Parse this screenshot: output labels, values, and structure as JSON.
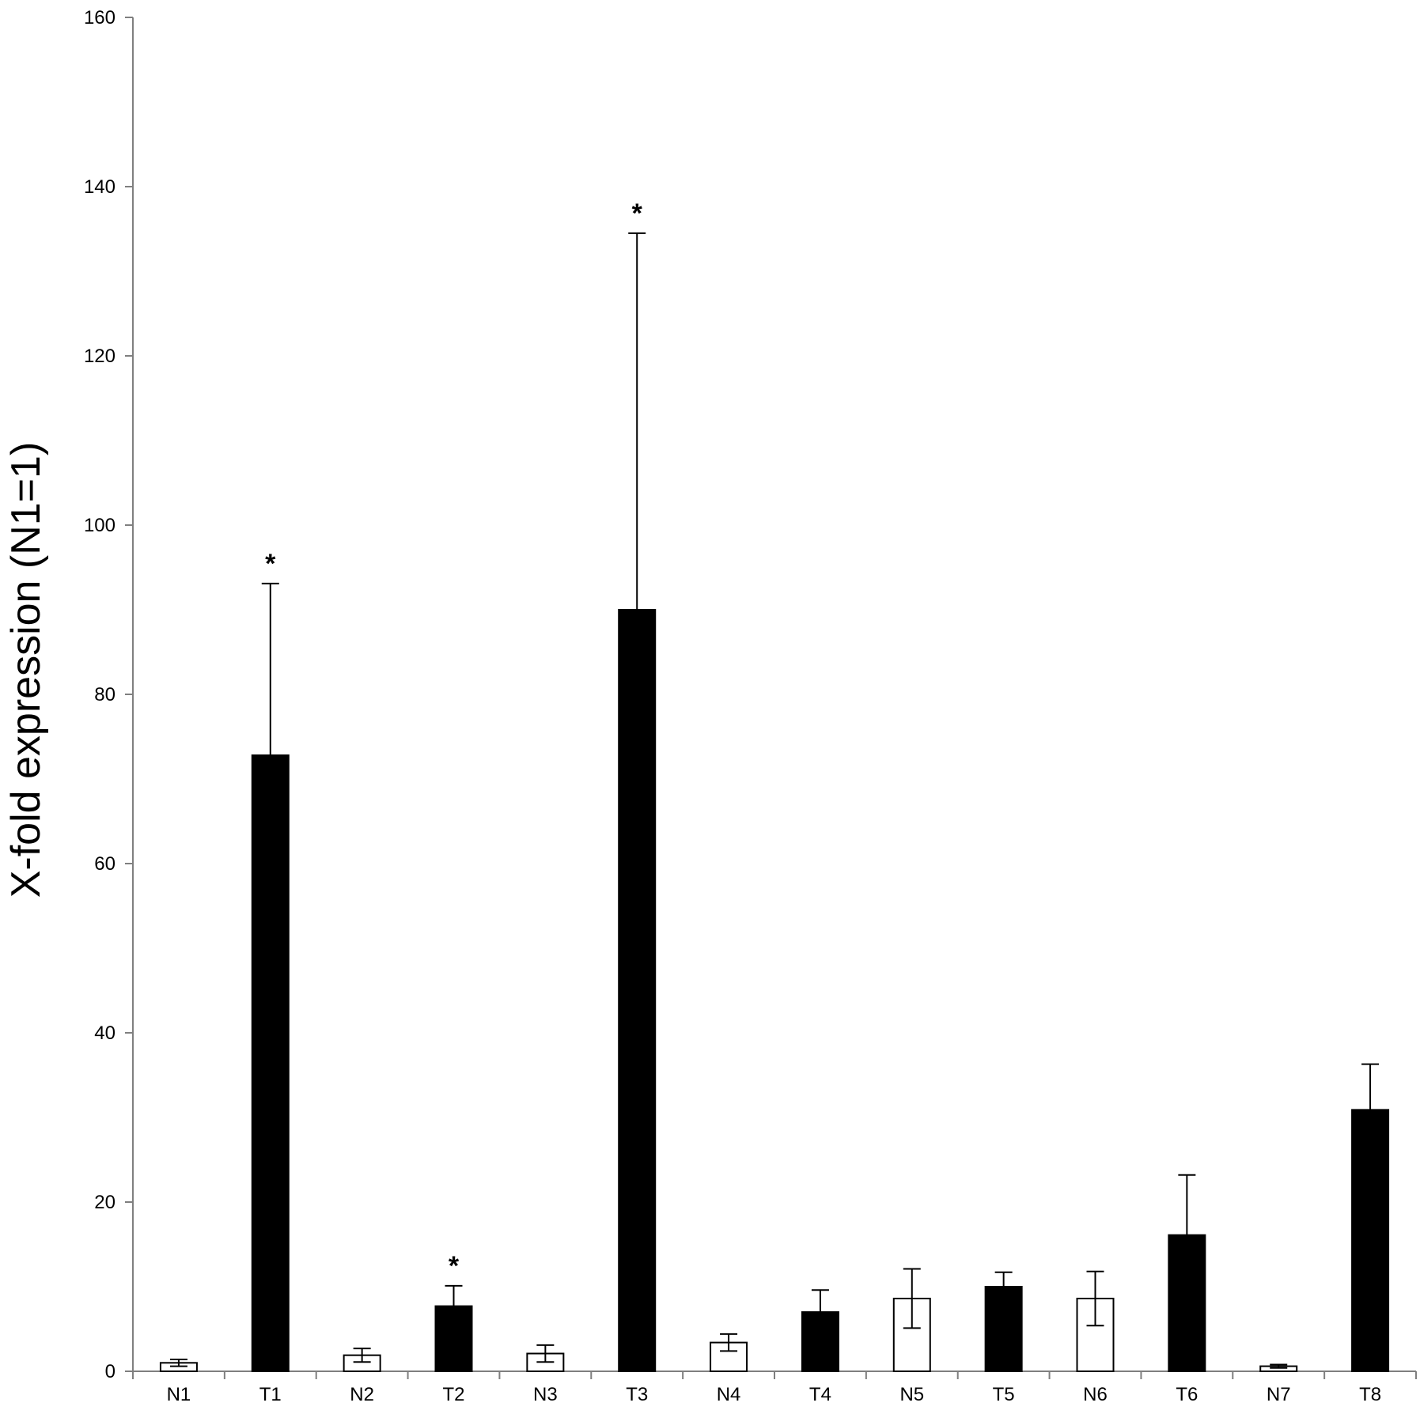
{
  "chart_data": {
    "type": "bar",
    "title": "",
    "xlabel": "",
    "ylabel": "X-fold expression (N1=1)",
    "ylim": [
      0,
      160
    ],
    "yticks": [
      0,
      20,
      40,
      60,
      80,
      100,
      120,
      140,
      160
    ],
    "ytick_labels": [
      "0",
      "20",
      "40",
      "60",
      "80",
      "100",
      "120",
      "140",
      "160"
    ],
    "grid": false,
    "categories": [
      "N1",
      "T1",
      "N2",
      "T2",
      "N3",
      "T3",
      "N4",
      "T4",
      "N5",
      "T5",
      "N6",
      "T6",
      "N7",
      "T8"
    ],
    "values": [
      1.0,
      72.8,
      1.9,
      7.7,
      2.1,
      90.0,
      3.4,
      7.0,
      8.6,
      10.0,
      8.6,
      16.1,
      0.6,
      30.9
    ],
    "errors": [
      0.4,
      20.3,
      0.8,
      2.4,
      1.0,
      44.5,
      1.0,
      2.6,
      3.5,
      1.7,
      3.2,
      7.1,
      0.2,
      5.4
    ],
    "fill": [
      "white",
      "black",
      "white",
      "black",
      "white",
      "black",
      "white",
      "black",
      "white",
      "black",
      "white",
      "black",
      "white",
      "black"
    ],
    "significance": [
      "",
      "*",
      "",
      "*",
      "",
      "*",
      "",
      "",
      "",
      "",
      "",
      "",
      "",
      ""
    ],
    "colors": {
      "tumor_fill": "#000000",
      "normal_fill": "#ffffff",
      "axis": "#7f7f7f",
      "outline": "#000000"
    }
  }
}
